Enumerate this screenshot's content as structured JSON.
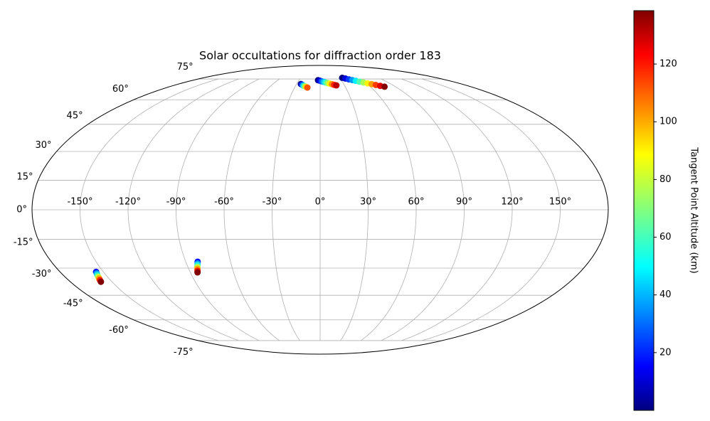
{
  "chart_data": {
    "type": "scatter",
    "projection": "mollweide",
    "title": "Solar occultations for diffraction order 183",
    "x": [
      -24.5,
      -22.6,
      -20.7,
      -18.8,
      -16.9,
      -15,
      -3,
      -0.4,
      2.1,
      4.7,
      7.2,
      9.8,
      12.3,
      14.9,
      17.4,
      20,
      34,
      37.9,
      41.8,
      45.7,
      49.6,
      53.5,
      57.5,
      61.4,
      65.3,
      69.2,
      73.1,
      77,
      -155,
      -155.5,
      -156,
      -156.5,
      -157,
      -157.5,
      -158,
      -82,
      -82.5,
      -83,
      -83.5,
      -84,
      -84.5,
      -85
    ],
    "y": [
      71,
      70.5,
      69.9,
      69.4,
      68.9,
      68.4,
      74,
      73.6,
      73.1,
      72.7,
      72.2,
      71.8,
      71.3,
      70.9,
      70.4,
      70,
      76,
      75.4,
      74.7,
      74.1,
      73.5,
      72.8,
      72.2,
      71.5,
      70.9,
      70.3,
      69.6,
      69,
      -32,
      -32.9,
      -33.8,
      -34.7,
      -35.6,
      -36.5,
      -37.4,
      -26.6,
      -27.6,
      -28.5,
      -29.5,
      -30.4,
      -31.4,
      -32.3
    ],
    "c": [
      2,
      24,
      46,
      68,
      90,
      110,
      0,
      14,
      29,
      43,
      58,
      72,
      87,
      101,
      116,
      130,
      0,
      13,
      25,
      38,
      50,
      63,
      75,
      88,
      100,
      113,
      125,
      138,
      20,
      40,
      59,
      79,
      99,
      118,
      138,
      20,
      40,
      59,
      79,
      99,
      118,
      138
    ],
    "colormap": "jet",
    "clim": [
      0,
      138.5
    ],
    "colorbar_label": "Tangent Point Altitude (km)",
    "cticks": [
      20,
      40,
      60,
      80,
      100,
      120
    ],
    "xlim": [
      -180,
      180
    ],
    "ylim": [
      -90,
      90
    ],
    "xticks": [
      {
        "value": -150,
        "label": "-150°"
      },
      {
        "value": -120,
        "label": "-120°"
      },
      {
        "value": -90,
        "label": "-90°"
      },
      {
        "value": -60,
        "label": "-60°"
      },
      {
        "value": -30,
        "label": "-30°"
      },
      {
        "value": 0,
        "label": "0°"
      },
      {
        "value": 30,
        "label": "30°"
      },
      {
        "value": 60,
        "label": "60°"
      },
      {
        "value": 90,
        "label": "90°"
      },
      {
        "value": 120,
        "label": "120°"
      },
      {
        "value": 150,
        "label": "150°"
      }
    ],
    "yticks": [
      {
        "value": -75,
        "label": "-75°"
      },
      {
        "value": -60,
        "label": "-60°"
      },
      {
        "value": -45,
        "label": "-45°"
      },
      {
        "value": -30,
        "label": "-30°"
      },
      {
        "value": -15,
        "label": "-15°"
      },
      {
        "value": 0,
        "label": "0°"
      },
      {
        "value": 15,
        "label": "15°"
      },
      {
        "value": 30,
        "label": "30°"
      },
      {
        "value": 45,
        "label": "45°"
      },
      {
        "value": 60,
        "label": "60°"
      },
      {
        "value": 75,
        "label": "75°"
      }
    ],
    "grid": true
  }
}
